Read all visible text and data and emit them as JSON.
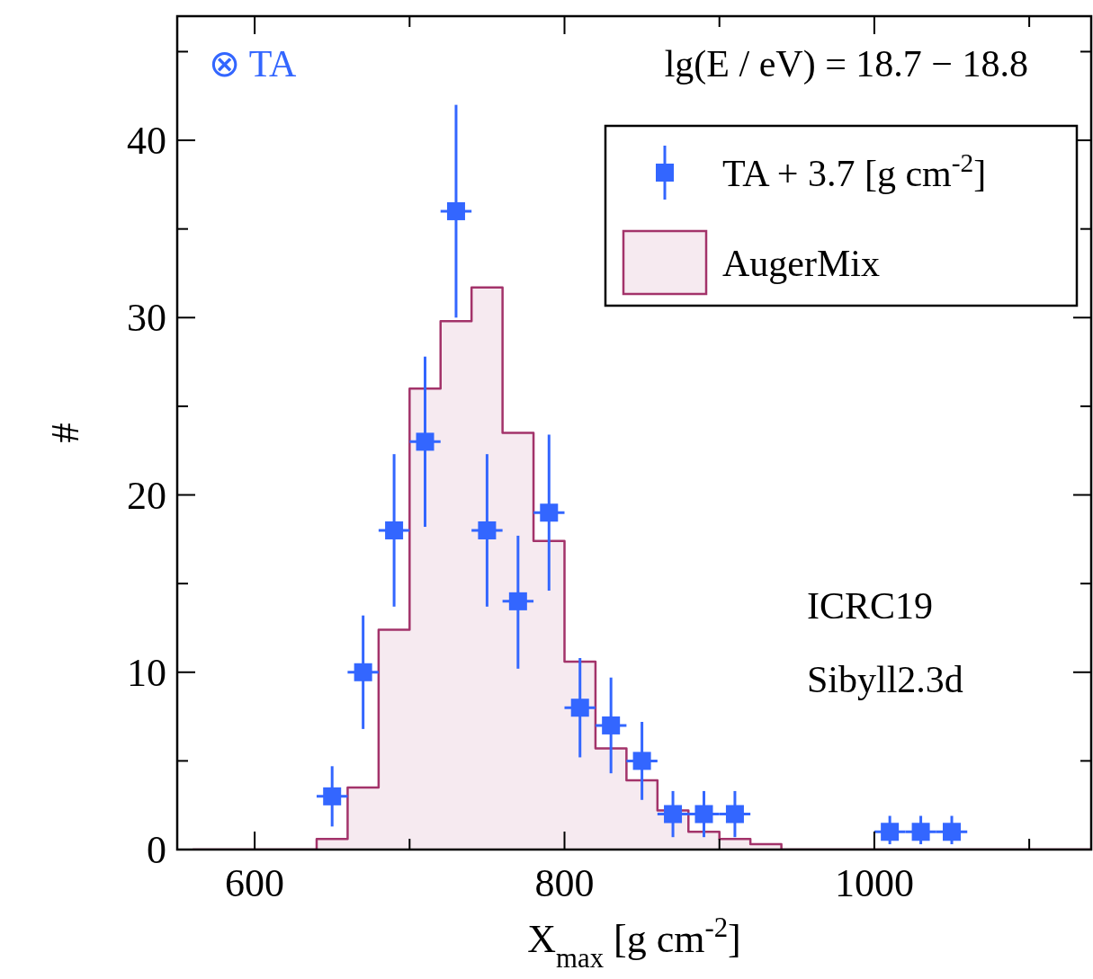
{
  "chart_data": {
    "type": "histogram",
    "xlabel": "X$_{max}$ [g cm$^{-2}$]",
    "ylabel": "#",
    "xlim": [
      550,
      1140
    ],
    "ylim": [
      0,
      47
    ],
    "xticks": [
      600,
      {
        "value": 700,
        "label": null
      },
      800,
      {
        "value": 900,
        "label": null
      },
      1000,
      {
        "value": 1100,
        "label": null
      }
    ],
    "yticks": [
      0,
      {
        "value": 5,
        "label": null
      },
      10,
      {
        "value": 15,
        "label": null
      },
      20,
      {
        "value": 25,
        "label": null
      },
      30,
      {
        "value": 35,
        "label": null
      },
      40,
      {
        "value": 45,
        "label": null
      }
    ],
    "grid": false,
    "legend": "top right",
    "annotations": [
      "⊗ TA",
      "lg(E / eV) = 18.7 − 18.8",
      "ICRC19",
      "Sibyll2.3d"
    ],
    "series": [
      {
        "name": "AugerMix",
        "color": "#a3336a",
        "bins": [
          560,
          580,
          600,
          620,
          640,
          660,
          680,
          700,
          720,
          740,
          760,
          780,
          800,
          820,
          840,
          860,
          880,
          900,
          920,
          940,
          960,
          980,
          1000,
          1020,
          1040,
          1060,
          1080,
          1100,
          1120,
          1140
        ],
        "values": [
          0,
          0,
          0,
          0,
          0.6,
          3.5,
          12.4,
          26,
          29.8,
          31.7,
          23.5,
          17.4,
          10.6,
          5.7,
          3.9,
          2.2,
          1.0,
          0.6,
          0.3,
          0,
          0,
          0,
          0,
          0,
          0,
          0,
          0,
          0,
          0
        ]
      },
      {
        "type": "scatter",
        "name": "TA + 3.7 [g cm$^{-2}$]",
        "color": "#3366ff",
        "marker": "square",
        "x": [
          650,
          670,
          690,
          710,
          730,
          750,
          770,
          790,
          810,
          830,
          850,
          870,
          890,
          910,
          1010,
          1030,
          1050
        ],
        "values": [
          3,
          10,
          18,
          23,
          36,
          18,
          14,
          19,
          8,
          7,
          5,
          2,
          2,
          2,
          1,
          1,
          1
        ],
        "errors": [
          [
            1.3,
            4.7
          ],
          [
            6.8,
            13.2
          ],
          [
            13.7,
            22.3
          ],
          [
            18.2,
            27.8
          ],
          [
            30,
            42
          ],
          [
            13.7,
            22.3
          ],
          [
            10.2,
            17.7
          ],
          [
            14.6,
            23.4
          ],
          [
            5.2,
            10.8
          ],
          [
            4.3,
            9.7
          ],
          [
            2.8,
            7.2
          ],
          [
            0.7,
            3.3
          ],
          [
            0.7,
            3.3
          ],
          [
            0.7,
            3.3
          ],
          [
            0.3,
            1.9
          ],
          [
            0.3,
            1.9
          ],
          [
            0.3,
            1.9
          ]
        ],
        "xerrors": [
          10,
          10,
          10,
          10,
          10,
          10,
          10,
          10,
          10,
          10,
          10,
          10,
          10,
          10,
          10,
          10,
          10
        ]
      }
    ]
  }
}
